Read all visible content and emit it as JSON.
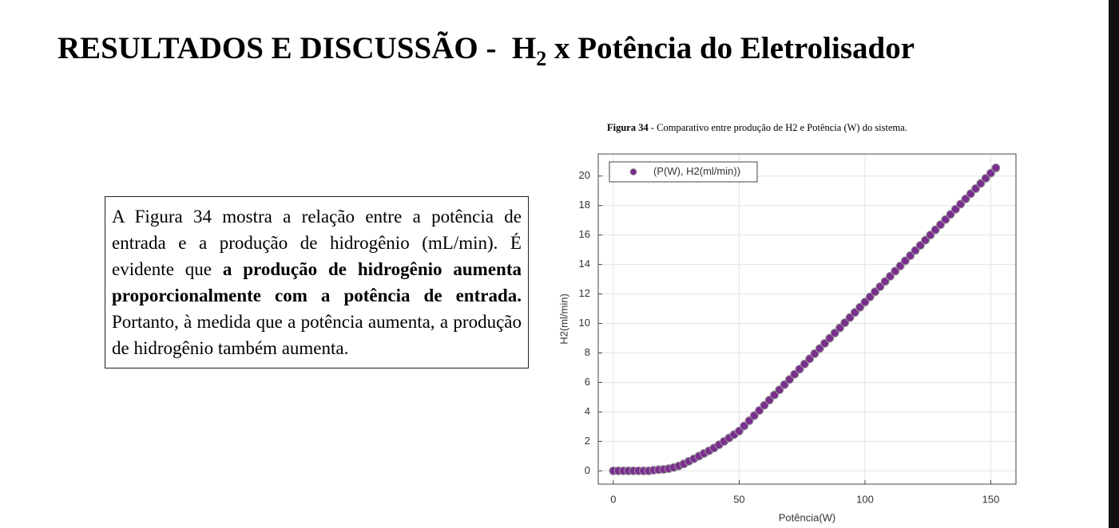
{
  "header": {
    "title_main": "RESULTADOS E DISCUSSÃO -  H",
    "title_sub": "2",
    "title_rest": " x Potência do Eletrolisador"
  },
  "text_box": {
    "segments": [
      {
        "text": "A Figura 34 mostra a relação entre a potência de entrada e a produção de hidrogênio (mL/min). É evidente que ",
        "bold": false
      },
      {
        "text": "a produção de hidrogênio aumenta proporcionalmente com a potência de entrada.",
        "bold": true
      },
      {
        "text": " Portanto, à medida que a potência aumenta, a produção de hidrogênio também aumenta.",
        "bold": false
      }
    ]
  },
  "figure": {
    "caption_label": "Figura 34",
    "caption_text": " - Comparativo entre produção de H2 e Potência (W) do sistema."
  },
  "chart_data": {
    "type": "scatter",
    "xlabel": "Potência(W)",
    "ylabel": "H2(ml/min)",
    "xlim": [
      -6,
      160
    ],
    "ylim": [
      -0.9,
      21.5
    ],
    "xticks": [
      0,
      50,
      100,
      150
    ],
    "yticks": [
      0,
      2,
      4,
      6,
      8,
      10,
      12,
      14,
      16,
      18,
      20
    ],
    "grid": true,
    "legend": "top-left",
    "x": [
      0,
      2,
      4,
      6,
      8,
      10,
      12,
      14,
      16,
      18,
      20,
      22,
      24,
      26,
      28,
      30,
      32,
      34,
      36,
      38,
      40,
      42,
      44,
      46,
      48,
      50,
      52,
      54,
      56,
      58,
      60,
      62,
      64,
      66,
      68,
      70,
      72,
      74,
      76,
      78,
      80,
      82,
      84,
      86,
      88,
      90,
      92,
      94,
      96,
      98,
      100,
      102,
      104,
      106,
      108,
      110,
      112,
      114,
      116,
      118,
      120,
      122,
      124,
      126,
      128,
      130,
      132,
      134,
      136,
      138,
      140,
      142,
      144,
      146,
      148,
      150,
      152
    ],
    "series": [
      {
        "name": "(P(W), H2(ml/min))",
        "color": "#7a2e8e",
        "values": [
          0,
          0,
          0,
          0,
          0,
          0,
          0,
          0,
          0.05,
          0.08,
          0.1,
          0.15,
          0.23,
          0.33,
          0.47,
          0.65,
          0.82,
          1.0,
          1.18,
          1.36,
          1.55,
          1.77,
          2.0,
          2.23,
          2.46,
          2.7,
          3.05,
          3.4,
          3.75,
          4.1,
          4.45,
          4.8,
          5.15,
          5.5,
          5.85,
          6.2,
          6.55,
          6.9,
          7.25,
          7.6,
          7.95,
          8.3,
          8.65,
          9.0,
          9.35,
          9.7,
          10.05,
          10.4,
          10.75,
          11.1,
          11.45,
          11.8,
          12.15,
          12.5,
          12.85,
          13.2,
          13.55,
          13.9,
          14.25,
          14.6,
          14.95,
          15.3,
          15.65,
          16.0,
          16.35,
          16.7,
          17.05,
          17.4,
          17.75,
          18.1,
          18.45,
          18.8,
          19.15,
          19.5,
          19.85,
          20.2,
          20.55
        ]
      }
    ]
  }
}
